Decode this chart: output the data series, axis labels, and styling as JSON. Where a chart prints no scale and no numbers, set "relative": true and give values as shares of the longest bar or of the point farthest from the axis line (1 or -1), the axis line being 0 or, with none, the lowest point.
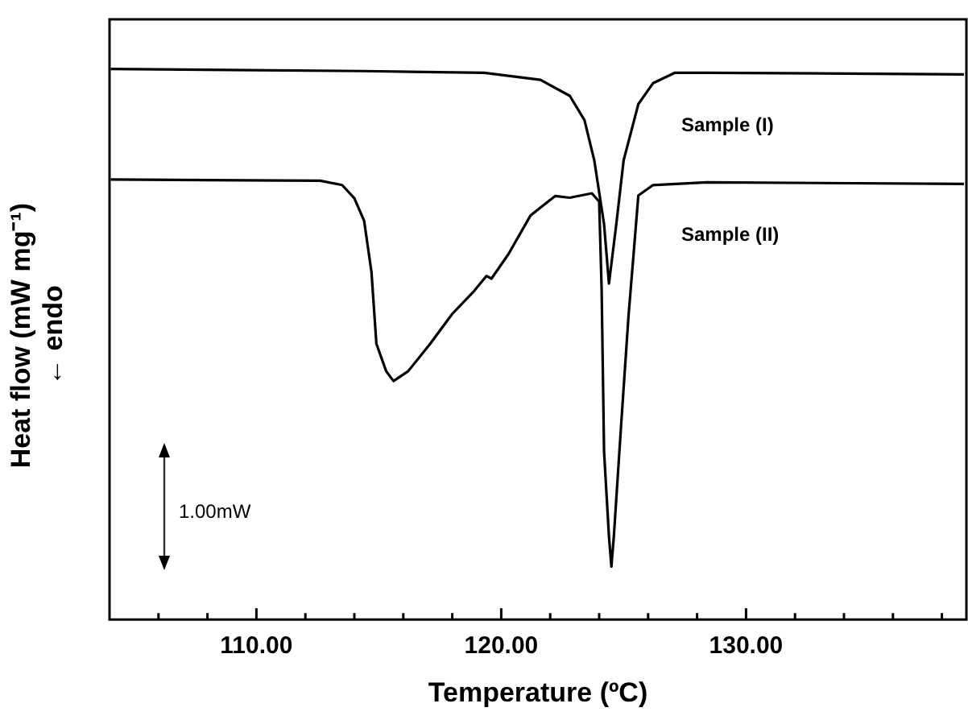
{
  "chart_data": {
    "type": "line",
    "relative": true,
    "xlabel": "Temperature (ºC)",
    "ylabel": "Heat flow (mW mg⁻¹)\n← endo",
    "annotations": [
      "1.00mW"
    ],
    "xlim": [
      104,
      139
    ],
    "xticks": [
      {
        "value": 106,
        "label": null
      },
      {
        "value": 108,
        "label": null
      },
      {
        "value": 110,
        "label": "110.00"
      },
      {
        "value": 112,
        "label": null
      },
      {
        "value": 114,
        "label": null
      },
      {
        "value": 116,
        "label": null
      },
      {
        "value": 118,
        "label": null
      },
      {
        "value": 120,
        "label": "120.00"
      },
      {
        "value": 122,
        "label": null
      },
      {
        "value": 124,
        "label": null
      },
      {
        "value": 126,
        "label": null
      },
      {
        "value": 128,
        "label": null
      },
      {
        "value": 130,
        "label": "130.00"
      },
      {
        "value": 132,
        "label": null
      },
      {
        "value": 134,
        "label": null
      },
      {
        "value": 136,
        "label": null
      },
      {
        "value": 138,
        "label": null
      }
    ],
    "grid": false,
    "legend": false,
    "marker": "none",
    "line_style": "solid",
    "series": [
      {
        "name": "Sample (I)",
        "color": "#000000",
        "x": [
          104.05,
          114.4,
          119.3,
          121.6,
          122.8,
          123.4,
          123.8,
          124.2,
          124.4,
          124.7,
          125.0,
          125.6,
          126.2,
          127.1,
          128.4,
          138.9
        ],
        "values": [
          1.0,
          0.996,
          0.993,
          0.98,
          0.951,
          0.907,
          0.834,
          0.718,
          0.61,
          0.718,
          0.834,
          0.936,
          0.974,
          0.993,
          0.993,
          0.99
        ]
      },
      {
        "name": "Sample (II)",
        "color": "#000000",
        "x": [
          104.05,
          112.6,
          113.5,
          114.0,
          114.4,
          114.7,
          114.9,
          115.3,
          115.6,
          116.2,
          117.1,
          118.0,
          118.9,
          119.4,
          119.6,
          120.3,
          121.2,
          122.2,
          122.8,
          123.7,
          124.0,
          124.1,
          124.2,
          124.4,
          124.5,
          124.6,
          124.9,
          125.2,
          125.4,
          125.6,
          126.2,
          128.4,
          138.9
        ],
        "values": [
          0.799,
          0.797,
          0.789,
          0.765,
          0.724,
          0.631,
          0.501,
          0.451,
          0.433,
          0.451,
          0.501,
          0.555,
          0.597,
          0.624,
          0.619,
          0.664,
          0.734,
          0.769,
          0.766,
          0.774,
          0.759,
          0.602,
          0.305,
          0.151,
          0.096,
          0.151,
          0.355,
          0.552,
          0.66,
          0.77,
          0.789,
          0.794,
          0.791
        ]
      }
    ]
  }
}
